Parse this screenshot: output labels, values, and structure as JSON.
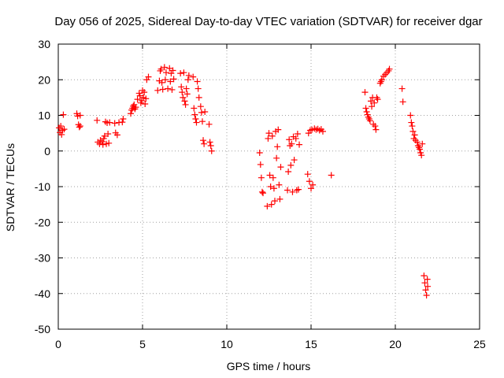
{
  "chart_data": {
    "type": "scatter",
    "title": "Day 056 of 2025, Sidereal Day-to-day VTEC variation (SDTVAR) for receiver dgar",
    "xlabel": "GPS time / hours",
    "ylabel": "SDTVAR / TECUs",
    "xlim": [
      0,
      25
    ],
    "ylim": [
      -50,
      30
    ],
    "xticks": [
      "0",
      "5",
      "10",
      "15",
      "20",
      "25"
    ],
    "yticks": [
      "30",
      "20",
      "10",
      "0",
      "-10",
      "-20",
      "-30",
      "-40",
      "-50"
    ],
    "grid": true,
    "marker": "+",
    "marker_color": "#ff0000",
    "series": [
      {
        "name": "SDTVAR",
        "points": [
          [
            0.05,
            6.5
          ],
          [
            0.1,
            5.2
          ],
          [
            0.15,
            7.0
          ],
          [
            0.2,
            4.6
          ],
          [
            0.25,
            5.8
          ],
          [
            0.3,
            10.2
          ],
          [
            0.35,
            6.1
          ],
          [
            1.1,
            10.5
          ],
          [
            1.15,
            9.8
          ],
          [
            1.2,
            7.4
          ],
          [
            1.25,
            6.7
          ],
          [
            1.3,
            10.0
          ],
          [
            1.3,
            7.0
          ],
          [
            2.3,
            8.6
          ],
          [
            2.35,
            2.5
          ],
          [
            2.45,
            2.0
          ],
          [
            2.5,
            3.0
          ],
          [
            2.6,
            2.6
          ],
          [
            2.65,
            1.8
          ],
          [
            2.7,
            3.5
          ],
          [
            2.75,
            4.2
          ],
          [
            2.8,
            8.2
          ],
          [
            2.85,
            2.0
          ],
          [
            2.9,
            7.9
          ],
          [
            2.95,
            4.8
          ],
          [
            3.0,
            2.2
          ],
          [
            3.05,
            8.0
          ],
          [
            3.35,
            7.8
          ],
          [
            3.4,
            5.1
          ],
          [
            3.5,
            4.5
          ],
          [
            3.6,
            8.0
          ],
          [
            3.8,
            8.1
          ],
          [
            3.85,
            9.0
          ],
          [
            4.3,
            10.5
          ],
          [
            4.35,
            11.5
          ],
          [
            4.4,
            12.0
          ],
          [
            4.45,
            12.6
          ],
          [
            4.5,
            13.0
          ],
          [
            4.55,
            11.8
          ],
          [
            4.6,
            12.3
          ],
          [
            4.7,
            14.5
          ],
          [
            4.8,
            16.2
          ],
          [
            4.85,
            15.5
          ],
          [
            4.9,
            13.5
          ],
          [
            4.95,
            14.1
          ],
          [
            5.0,
            17.0
          ],
          [
            5.05,
            15.0
          ],
          [
            5.1,
            16.5
          ],
          [
            5.15,
            13.2
          ],
          [
            5.2,
            14.7
          ],
          [
            5.25,
            20.0
          ],
          [
            5.35,
            20.8
          ],
          [
            5.9,
            17.0
          ],
          [
            6.0,
            19.7
          ],
          [
            6.05,
            22.5
          ],
          [
            6.1,
            23.0
          ],
          [
            6.15,
            19.2
          ],
          [
            6.2,
            17.3
          ],
          [
            6.3,
            23.5
          ],
          [
            6.35,
            20.0
          ],
          [
            6.4,
            22.0
          ],
          [
            6.5,
            17.5
          ],
          [
            6.6,
            23.2
          ],
          [
            6.65,
            19.5
          ],
          [
            6.7,
            21.8
          ],
          [
            6.75,
            17.2
          ],
          [
            6.8,
            22.6
          ],
          [
            6.85,
            20.2
          ],
          [
            7.25,
            21.8
          ],
          [
            7.3,
            18.0
          ],
          [
            7.35,
            16.5
          ],
          [
            7.4,
            15.0
          ],
          [
            7.45,
            22.0
          ],
          [
            7.5,
            14.0
          ],
          [
            7.55,
            13.0
          ],
          [
            7.6,
            17.5
          ],
          [
            7.65,
            16.0
          ],
          [
            7.7,
            20.0
          ],
          [
            7.75,
            21.2
          ],
          [
            8.0,
            20.8
          ],
          [
            8.05,
            12.0
          ],
          [
            8.1,
            10.2
          ],
          [
            8.15,
            9.0
          ],
          [
            8.2,
            8.0
          ],
          [
            8.25,
            19.5
          ],
          [
            8.3,
            17.5
          ],
          [
            8.35,
            15.0
          ],
          [
            8.45,
            12.5
          ],
          [
            8.5,
            10.8
          ],
          [
            8.55,
            8.3
          ],
          [
            8.6,
            3.0
          ],
          [
            8.65,
            2.0
          ],
          [
            8.7,
            11.0
          ],
          [
            8.95,
            7.5
          ],
          [
            9.0,
            2.5
          ],
          [
            9.05,
            1.5
          ],
          [
            9.1,
            0.0
          ],
          [
            11.95,
            -0.5
          ],
          [
            12.0,
            -3.8
          ],
          [
            12.05,
            -7.5
          ],
          [
            12.1,
            -11.5
          ],
          [
            12.15,
            -11.8
          ],
          [
            12.4,
            -15.5
          ],
          [
            12.45,
            3.5
          ],
          [
            12.5,
            5.0
          ],
          [
            12.55,
            -6.8
          ],
          [
            12.6,
            -10.0
          ],
          [
            12.65,
            -15.0
          ],
          [
            12.7,
            4.2
          ],
          [
            12.75,
            -7.5
          ],
          [
            12.8,
            -10.5
          ],
          [
            12.85,
            -14.0
          ],
          [
            12.9,
            5.5
          ],
          [
            12.95,
            -2.0
          ],
          [
            13.0,
            1.2
          ],
          [
            13.05,
            6.0
          ],
          [
            13.1,
            -9.5
          ],
          [
            13.15,
            -13.5
          ],
          [
            13.2,
            -4.5
          ],
          [
            13.6,
            -11.0
          ],
          [
            13.65,
            -5.8
          ],
          [
            13.7,
            3.2
          ],
          [
            13.75,
            1.5
          ],
          [
            13.8,
            -4.0
          ],
          [
            13.85,
            2.0
          ],
          [
            13.9,
            -11.5
          ],
          [
            13.95,
            4.0
          ],
          [
            14.0,
            -2.5
          ],
          [
            14.1,
            3.5
          ],
          [
            14.15,
            -11.0
          ],
          [
            14.2,
            4.8
          ],
          [
            14.25,
            -10.8
          ],
          [
            14.3,
            1.8
          ],
          [
            14.8,
            -6.5
          ],
          [
            14.85,
            5.0
          ],
          [
            14.9,
            -8.5
          ],
          [
            14.95,
            5.8
          ],
          [
            15.0,
            -10.5
          ],
          [
            15.05,
            6.0
          ],
          [
            15.1,
            -9.5
          ],
          [
            15.2,
            6.3
          ],
          [
            15.3,
            6.0
          ],
          [
            15.4,
            6.2
          ],
          [
            15.5,
            5.8
          ],
          [
            15.6,
            6.1
          ],
          [
            15.7,
            5.5
          ],
          [
            16.2,
            -6.8
          ],
          [
            18.2,
            16.5
          ],
          [
            18.25,
            12.0
          ],
          [
            18.3,
            11.0
          ],
          [
            18.35,
            10.2
          ],
          [
            18.4,
            9.5
          ],
          [
            18.45,
            9.0
          ],
          [
            18.5,
            8.5
          ],
          [
            18.55,
            14.0
          ],
          [
            18.6,
            12.5
          ],
          [
            18.65,
            15.0
          ],
          [
            18.7,
            7.5
          ],
          [
            18.75,
            13.5
          ],
          [
            18.8,
            7.0
          ],
          [
            18.85,
            6.0
          ],
          [
            18.9,
            15.0
          ],
          [
            18.95,
            14.5
          ],
          [
            19.1,
            19.0
          ],
          [
            19.15,
            19.5
          ],
          [
            19.2,
            20.0
          ],
          [
            19.3,
            21.0
          ],
          [
            19.4,
            21.5
          ],
          [
            19.5,
            22.0
          ],
          [
            19.6,
            22.5
          ],
          [
            19.65,
            23.0
          ],
          [
            20.4,
            17.5
          ],
          [
            20.45,
            13.8
          ],
          [
            20.9,
            10.0
          ],
          [
            20.95,
            8.0
          ],
          [
            21.0,
            7.0
          ],
          [
            21.05,
            5.5
          ],
          [
            21.1,
            3.5
          ],
          [
            21.15,
            4.5
          ],
          [
            21.2,
            3.0
          ],
          [
            21.3,
            2.5
          ],
          [
            21.35,
            1.5
          ],
          [
            21.4,
            1.0
          ],
          [
            21.45,
            0.5
          ],
          [
            21.5,
            -0.5
          ],
          [
            21.55,
            -1.2
          ],
          [
            21.6,
            2.0
          ],
          [
            21.7,
            -35.0
          ],
          [
            21.75,
            -37.0
          ],
          [
            21.8,
            -39.0
          ],
          [
            21.85,
            -40.5
          ],
          [
            21.9,
            -36.0
          ],
          [
            21.92,
            -38.0
          ]
        ]
      }
    ]
  }
}
